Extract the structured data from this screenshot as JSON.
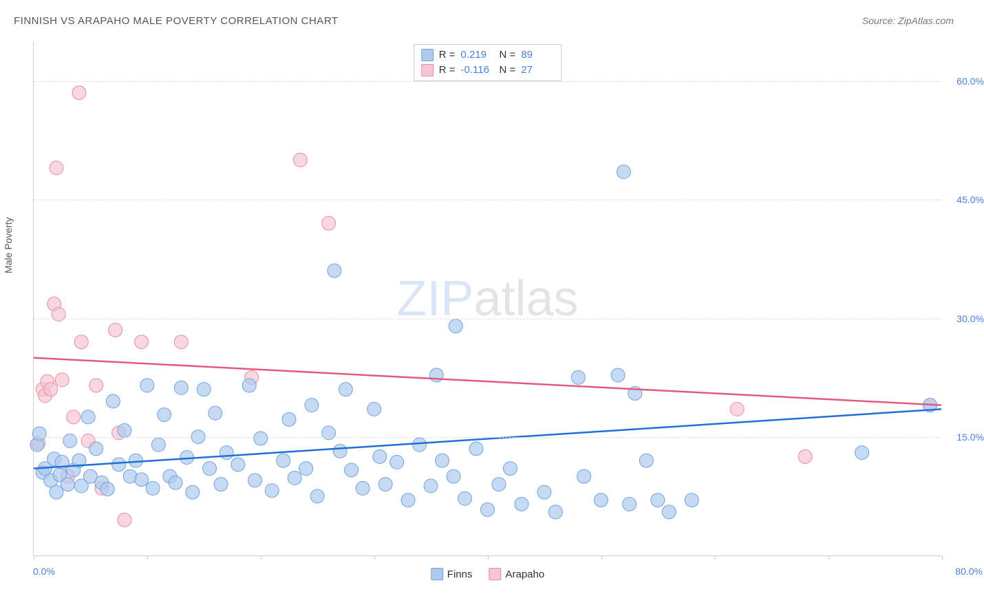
{
  "title": "FINNISH VS ARAPAHO MALE POVERTY CORRELATION CHART",
  "source": "Source: ZipAtlas.com",
  "watermark_zip": "ZIP",
  "watermark_atlas": "atlas",
  "y_axis_title": "Male Poverty",
  "x_axis": {
    "min": 0.0,
    "max": 80.0,
    "min_label": "0.0%",
    "max_label": "80.0%",
    "ticks": [
      0,
      10,
      20,
      30,
      40,
      50,
      60,
      70,
      80
    ]
  },
  "y_axis": {
    "min": 0.0,
    "max": 65.0,
    "tick_values": [
      15.0,
      30.0,
      45.0,
      60.0
    ],
    "tick_labels": [
      "15.0%",
      "30.0%",
      "45.0%",
      "60.0%"
    ]
  },
  "series": {
    "finns": {
      "label": "Finns",
      "fill_color": "#aecbef",
      "stroke_color": "#6fa3dd",
      "line_color": "#1e6fd9",
      "opacity": 0.7,
      "marker_radius": 10,
      "R": "0.219",
      "N": "89",
      "trend": {
        "x1": 0.0,
        "y1": 11.0,
        "x2": 80.0,
        "y2": 18.5
      },
      "points": [
        [
          0.3,
          14.0
        ],
        [
          0.5,
          15.4
        ],
        [
          0.8,
          10.5
        ],
        [
          1.0,
          11.0
        ],
        [
          1.5,
          9.5
        ],
        [
          1.8,
          12.2
        ],
        [
          2.0,
          8.0
        ],
        [
          2.3,
          10.2
        ],
        [
          2.5,
          11.8
        ],
        [
          3.0,
          9.0
        ],
        [
          3.2,
          14.5
        ],
        [
          3.5,
          10.8
        ],
        [
          4.0,
          12.0
        ],
        [
          4.2,
          8.8
        ],
        [
          4.8,
          17.5
        ],
        [
          5.0,
          10.0
        ],
        [
          5.5,
          13.5
        ],
        [
          6.0,
          9.2
        ],
        [
          6.5,
          8.4
        ],
        [
          7.0,
          19.5
        ],
        [
          7.5,
          11.5
        ],
        [
          8.0,
          15.8
        ],
        [
          8.5,
          10.0
        ],
        [
          9.0,
          12.0
        ],
        [
          9.5,
          9.6
        ],
        [
          10.0,
          21.5
        ],
        [
          10.5,
          8.5
        ],
        [
          11.0,
          14.0
        ],
        [
          11.5,
          17.8
        ],
        [
          12.0,
          10.0
        ],
        [
          12.5,
          9.2
        ],
        [
          13.0,
          21.2
        ],
        [
          13.5,
          12.4
        ],
        [
          14.0,
          8.0
        ],
        [
          14.5,
          15.0
        ],
        [
          15.0,
          21.0
        ],
        [
          15.5,
          11.0
        ],
        [
          16.0,
          18.0
        ],
        [
          16.5,
          9.0
        ],
        [
          17.0,
          13.0
        ],
        [
          18.0,
          11.5
        ],
        [
          19.0,
          21.5
        ],
        [
          19.5,
          9.5
        ],
        [
          20.0,
          14.8
        ],
        [
          21.0,
          8.2
        ],
        [
          22.0,
          12.0
        ],
        [
          22.5,
          17.2
        ],
        [
          23.0,
          9.8
        ],
        [
          24.0,
          11.0
        ],
        [
          24.5,
          19.0
        ],
        [
          25.0,
          7.5
        ],
        [
          26.0,
          15.5
        ],
        [
          26.5,
          36.0
        ],
        [
          27.0,
          13.2
        ],
        [
          27.5,
          21.0
        ],
        [
          28.0,
          10.8
        ],
        [
          29.0,
          8.5
        ],
        [
          30.0,
          18.5
        ],
        [
          30.5,
          12.5
        ],
        [
          31.0,
          9.0
        ],
        [
          32.0,
          11.8
        ],
        [
          33.0,
          7.0
        ],
        [
          34.0,
          14.0
        ],
        [
          35.0,
          8.8
        ],
        [
          35.5,
          22.8
        ],
        [
          36.0,
          12.0
        ],
        [
          37.0,
          10.0
        ],
        [
          37.2,
          29.0
        ],
        [
          38.0,
          7.2
        ],
        [
          39.0,
          13.5
        ],
        [
          40.0,
          5.8
        ],
        [
          41.0,
          9.0
        ],
        [
          42.0,
          11.0
        ],
        [
          43.0,
          6.5
        ],
        [
          45.0,
          8.0
        ],
        [
          46.0,
          5.5
        ],
        [
          48.0,
          22.5
        ],
        [
          48.5,
          10.0
        ],
        [
          50.0,
          7.0
        ],
        [
          51.5,
          22.8
        ],
        [
          52.0,
          48.5
        ],
        [
          52.5,
          6.5
        ],
        [
          53.0,
          20.5
        ],
        [
          54.0,
          12.0
        ],
        [
          55.0,
          7.0
        ],
        [
          56.0,
          5.5
        ],
        [
          58.0,
          7.0
        ],
        [
          73.0,
          13.0
        ],
        [
          79.0,
          19.0
        ]
      ]
    },
    "arapaho": {
      "label": "Arapaho",
      "fill_color": "#f6c6d2",
      "stroke_color": "#e88ba3",
      "line_color": "#e35a7f",
      "opacity": 0.7,
      "marker_radius": 10,
      "R": "-0.116",
      "N": "27",
      "trend": {
        "x1": 0.0,
        "y1": 25.0,
        "x2": 80.0,
        "y2": 19.0
      },
      "points": [
        [
          0.4,
          14.2
        ],
        [
          0.8,
          21.0
        ],
        [
          1.0,
          20.2
        ],
        [
          1.2,
          22.0
        ],
        [
          1.5,
          21.0
        ],
        [
          1.8,
          31.8
        ],
        [
          2.0,
          49.0
        ],
        [
          2.2,
          30.5
        ],
        [
          2.5,
          22.2
        ],
        [
          3.0,
          10.0
        ],
        [
          3.5,
          17.5
        ],
        [
          4.0,
          58.5
        ],
        [
          4.2,
          27.0
        ],
        [
          4.8,
          14.5
        ],
        [
          5.5,
          21.5
        ],
        [
          6.0,
          8.5
        ],
        [
          7.2,
          28.5
        ],
        [
          7.5,
          15.5
        ],
        [
          8.0,
          4.5
        ],
        [
          9.5,
          27.0
        ],
        [
          13.0,
          27.0
        ],
        [
          19.2,
          22.5
        ],
        [
          23.5,
          50.0
        ],
        [
          26.0,
          42.0
        ],
        [
          62.0,
          18.5
        ],
        [
          68.0,
          12.5
        ],
        [
          79.0,
          19.0
        ]
      ]
    }
  },
  "legend_top": {
    "R_label": "R =",
    "N_label": "N ="
  },
  "styling": {
    "background_color": "#ffffff",
    "grid_color": "#dddddd",
    "axis_color": "#cccccc",
    "title_color": "#555555",
    "label_color": "#4a7fd8",
    "title_fontsize": 15,
    "label_fontsize": 14,
    "line_width": 2.5
  }
}
